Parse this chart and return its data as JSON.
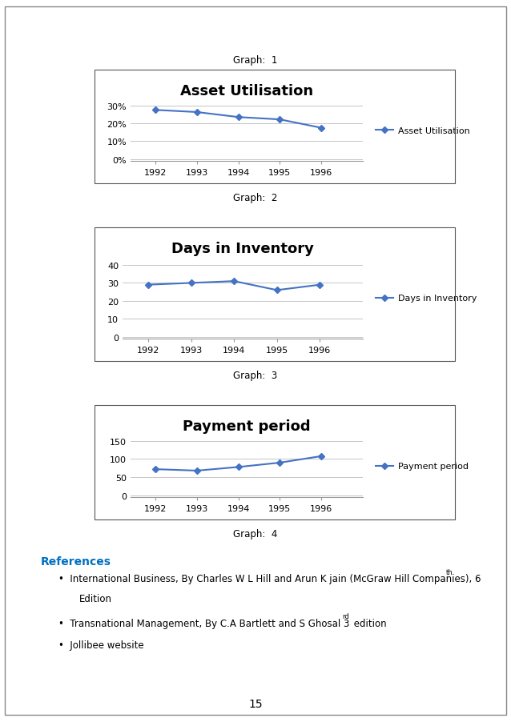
{
  "graph1": {
    "title": "Asset Utilisation",
    "years": [
      1992,
      1993,
      1994,
      1995,
      1996
    ],
    "values": [
      0.275,
      0.263,
      0.235,
      0.222,
      0.175
    ],
    "yticks": [
      0.0,
      0.1,
      0.2,
      0.3
    ],
    "ytick_labels": [
      "0%",
      "10%",
      "20%",
      "30%"
    ],
    "ylim": [
      -0.01,
      0.33
    ],
    "legend_label": "Asset Utilisation",
    "caption_above": "Graph:  1",
    "caption_below": "Graph:  2"
  },
  "graph2": {
    "title": "Days in Inventory",
    "years": [
      1992,
      1993,
      1994,
      1995,
      1996
    ],
    "values": [
      29,
      30,
      31,
      26,
      29
    ],
    "yticks": [
      0,
      10,
      20,
      30,
      40
    ],
    "ylim": [
      -1,
      44
    ],
    "legend_label": "Days in Inventory",
    "caption_below": "Graph:  3"
  },
  "graph3": {
    "title": "Payment period",
    "years": [
      1992,
      1993,
      1994,
      1995,
      1996
    ],
    "values": [
      72,
      68,
      78,
      90,
      108
    ],
    "yticks": [
      0,
      50,
      100,
      150
    ],
    "ylim": [
      -5,
      165
    ],
    "legend_label": "Payment period",
    "caption_below": "Graph:  4"
  },
  "line_color": "#4472C4",
  "marker": "D",
  "marker_size": 4,
  "line_width": 1.5,
  "title_fontsize": 13,
  "tick_fontsize": 8,
  "legend_fontsize": 8,
  "caption_fontsize": 8.5,
  "page_bg": "#ffffff",
  "plot_bg": "#ffffff",
  "grid_color": "#bbbbbb",
  "border_color": "#555555",
  "references_title": "References",
  "references_color": "#0070C0",
  "page_number": "15",
  "outer_border_color": "#888888"
}
